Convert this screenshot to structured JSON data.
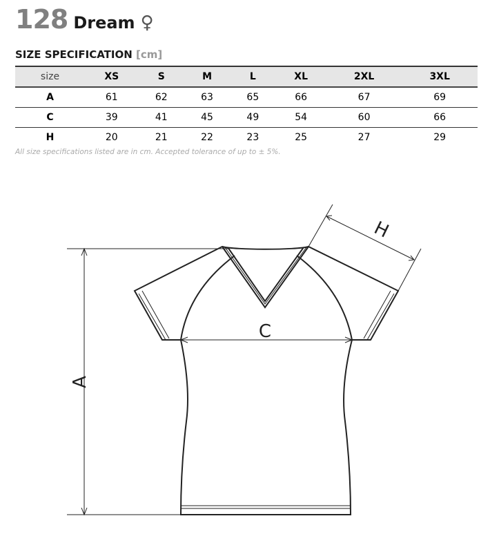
{
  "product": {
    "number": "128",
    "name": "Dream",
    "gender_symbol": "♀"
  },
  "spec": {
    "title": "SIZE SPECIFICATION",
    "unit": "[cm]"
  },
  "table": {
    "headers": [
      "size",
      "XS",
      "S",
      "M",
      "L",
      "XL",
      "2XL",
      "3XL"
    ],
    "rows": [
      {
        "label": "A",
        "values": [
          "61",
          "62",
          "63",
          "65",
          "66",
          "67",
          "69"
        ]
      },
      {
        "label": "C",
        "values": [
          "39",
          "41",
          "45",
          "49",
          "54",
          "60",
          "66"
        ]
      },
      {
        "label": "H",
        "values": [
          "20",
          "21",
          "22",
          "23",
          "25",
          "27",
          "29"
        ]
      }
    ]
  },
  "note": "All size specifications listed are in cm. Accepted tolerance of up to ± 5%.",
  "diagram": {
    "labels": {
      "A": "A",
      "C": "C",
      "H": "H"
    }
  }
}
